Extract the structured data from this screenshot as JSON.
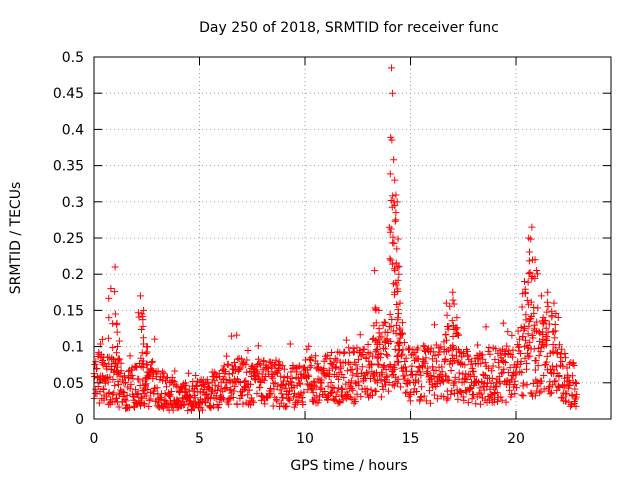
{
  "chart_data": {
    "type": "scatter",
    "title": "Day 250 of 2018, SRMTID for receiver func",
    "xlabel": "GPS time / hours",
    "ylabel": "SRMTID / TECUs",
    "xlim": [
      0,
      24.5
    ],
    "ylim": [
      0,
      0.5
    ],
    "xticks": [
      0,
      5,
      10,
      15,
      20
    ],
    "xtick_labels": [
      "0",
      "5",
      "10",
      "15",
      "20"
    ],
    "yticks": [
      0,
      0.05,
      0.1,
      0.15,
      0.2,
      0.25,
      0.3,
      0.35,
      0.4,
      0.45,
      0.5
    ],
    "ytick_labels": [
      "0",
      "0.05",
      "0.1",
      "0.15",
      "0.2",
      "0.25",
      "0.3",
      "0.35",
      "0.4",
      "0.45",
      "0.5"
    ],
    "grid": true,
    "marker": "+",
    "marker_color": "#ff0000",
    "point_count": 1450,
    "series": [
      {
        "name": "SRMTID",
        "baseline": [
          [
            0.0,
            0.045
          ],
          [
            0.3,
            0.06
          ],
          [
            0.6,
            0.055
          ],
          [
            1.0,
            0.05
          ],
          [
            1.5,
            0.04
          ],
          [
            2.0,
            0.045
          ],
          [
            2.5,
            0.05
          ],
          [
            3.0,
            0.045
          ],
          [
            3.5,
            0.035
          ],
          [
            4.0,
            0.032
          ],
          [
            4.5,
            0.03
          ],
          [
            5.0,
            0.032
          ],
          [
            5.5,
            0.04
          ],
          [
            6.0,
            0.045
          ],
          [
            6.5,
            0.05
          ],
          [
            7.0,
            0.055
          ],
          [
            7.5,
            0.045
          ],
          [
            8.0,
            0.05
          ],
          [
            8.5,
            0.05
          ],
          [
            9.0,
            0.048
          ],
          [
            9.5,
            0.045
          ],
          [
            10.0,
            0.05
          ],
          [
            10.5,
            0.055
          ],
          [
            11.0,
            0.06
          ],
          [
            11.5,
            0.058
          ],
          [
            12.0,
            0.06
          ],
          [
            12.5,
            0.062
          ],
          [
            13.0,
            0.065
          ],
          [
            13.5,
            0.075
          ],
          [
            14.0,
            0.09
          ],
          [
            14.5,
            0.08
          ],
          [
            15.0,
            0.06
          ],
          [
            15.5,
            0.062
          ],
          [
            16.0,
            0.06
          ],
          [
            16.5,
            0.065
          ],
          [
            17.0,
            0.085
          ],
          [
            17.5,
            0.06
          ],
          [
            18.0,
            0.055
          ],
          [
            18.5,
            0.06
          ],
          [
            19.0,
            0.06
          ],
          [
            19.5,
            0.06
          ],
          [
            20.0,
            0.07
          ],
          [
            20.5,
            0.1
          ],
          [
            21.0,
            0.075
          ],
          [
            21.5,
            0.1
          ],
          [
            22.0,
            0.065
          ],
          [
            22.5,
            0.05
          ],
          [
            22.9,
            0.045
          ]
        ],
        "peaks": [
          [
            0.4,
            0.11
          ],
          [
            0.8,
            0.18
          ],
          [
            1.0,
            0.21
          ],
          [
            1.1,
            0.12
          ],
          [
            2.2,
            0.17
          ],
          [
            2.35,
            0.15
          ],
          [
            2.5,
            0.1
          ],
          [
            13.3,
            0.205
          ],
          [
            13.5,
            0.15
          ],
          [
            13.8,
            0.12
          ],
          [
            14.1,
            0.485
          ],
          [
            14.15,
            0.45
          ],
          [
            14.2,
            0.358
          ],
          [
            14.25,
            0.33
          ],
          [
            14.3,
            0.275
          ],
          [
            14.35,
            0.235
          ],
          [
            14.4,
            0.21
          ],
          [
            14.5,
            0.16
          ],
          [
            16.7,
            0.16
          ],
          [
            17.0,
            0.175
          ],
          [
            17.2,
            0.14
          ],
          [
            20.4,
            0.19
          ],
          [
            20.6,
            0.25
          ],
          [
            20.75,
            0.265
          ],
          [
            20.9,
            0.22
          ],
          [
            21.2,
            0.17
          ],
          [
            21.5,
            0.175
          ],
          [
            21.8,
            0.16
          ]
        ],
        "x_range": [
          0.0,
          22.9
        ]
      }
    ]
  }
}
